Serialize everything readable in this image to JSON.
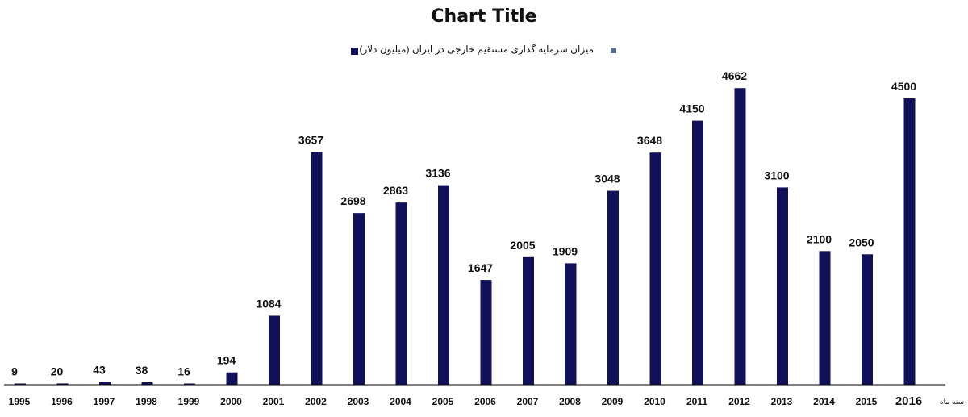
{
  "chart_data": {
    "type": "bar",
    "title": "Chart Title",
    "legend": [
      {
        "name": "میزان سرمایه گذاری مستقیم خارجی در ایران  (میلیون دلار)",
        "color": "#101159"
      },
      {
        "name": "",
        "color": "#5a6a8a"
      }
    ],
    "legend_position": "top",
    "x_unit_label": "سنه ماه",
    "categories": [
      "1995",
      "1996",
      "1997",
      "1998",
      "1999",
      "2000",
      "2001",
      "2002",
      "2003",
      "2004",
      "2005",
      "2006",
      "2007",
      "2008",
      "2009",
      "2010",
      "2011",
      "2012",
      "2013",
      "2014",
      "2015",
      "2016"
    ],
    "values": [
      9,
      20,
      43,
      38,
      16,
      194,
      1084,
      3657,
      2698,
      2863,
      3136,
      1647,
      2005,
      1909,
      3048,
      3648,
      4150,
      4662,
      3100,
      2100,
      2050,
      4500
    ],
    "ylim": [
      0,
      4900
    ],
    "grid": false,
    "bar_color": "#101159"
  }
}
